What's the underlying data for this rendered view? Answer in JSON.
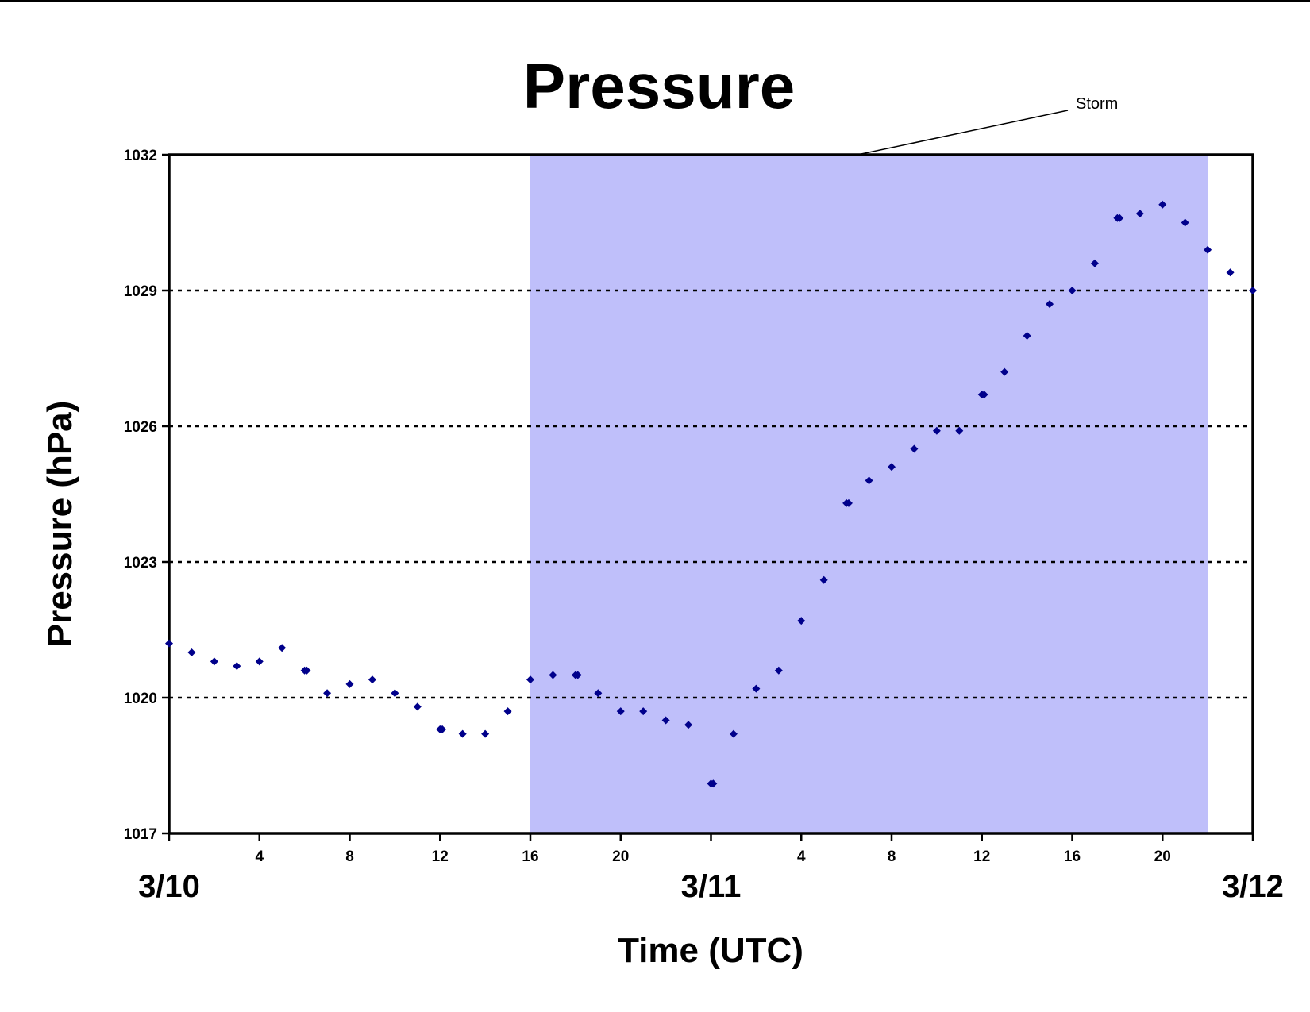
{
  "chart_data": {
    "type": "scatter",
    "title": "Pressure",
    "xlabel": "Time (UTC)",
    "ylabel": "Pressure (hPa)",
    "ylim": [
      1017,
      1032
    ],
    "yticks": [
      1017,
      1020,
      1023,
      1026,
      1029,
      1032
    ],
    "xlim": [
      0,
      48
    ],
    "xticks": [
      {
        "hour": 4,
        "label": "4"
      },
      {
        "hour": 8,
        "label": "8"
      },
      {
        "hour": 12,
        "label": "12"
      },
      {
        "hour": 16,
        "label": "16"
      },
      {
        "hour": 20,
        "label": "20"
      },
      {
        "hour": 28,
        "label": "4"
      },
      {
        "hour": 32,
        "label": "8"
      },
      {
        "hour": 36,
        "label": "12"
      },
      {
        "hour": 40,
        "label": "16"
      },
      {
        "hour": 44,
        "label": "20"
      }
    ],
    "date_labels": [
      {
        "hour": 0,
        "label": "3/10"
      },
      {
        "hour": 24,
        "label": "3/11"
      },
      {
        "hour": 48,
        "label": "3/12"
      }
    ],
    "grid": "horizontal dotted",
    "marker_color": "#00008B",
    "shaded_region": {
      "x_start": 16,
      "x_end": 46,
      "color": "#BFBFFA",
      "label": "Storm"
    },
    "series": [
      {
        "x": [
          0,
          1,
          2,
          3,
          4,
          5,
          6,
          6.1,
          7,
          8,
          9,
          10,
          11,
          12,
          12.1,
          13,
          14,
          15,
          16,
          17,
          18,
          18.1,
          19,
          20,
          21,
          22,
          23,
          24,
          24.1,
          25,
          26,
          27,
          28,
          29,
          30,
          30.1,
          31,
          32,
          33,
          34,
          35,
          36,
          36.1,
          37,
          38,
          39,
          40,
          41,
          42,
          42.1,
          43,
          44,
          45,
          46,
          47,
          48
        ],
        "y": [
          1021.2,
          1021.0,
          1020.8,
          1020.7,
          1020.8,
          1021.1,
          1020.6,
          1020.6,
          1020.1,
          1020.3,
          1020.4,
          1020.1,
          1019.8,
          1019.3,
          1019.3,
          1019.2,
          1019.2,
          1019.7,
          1020.4,
          1020.5,
          1020.5,
          1020.5,
          1020.1,
          1019.7,
          1019.7,
          1019.5,
          1019.4,
          1018.1,
          1018.1,
          1019.2,
          1020.2,
          1020.6,
          1021.7,
          1022.6,
          1024.3,
          1024.3,
          1024.8,
          1025.1,
          1025.5,
          1025.9,
          1025.9,
          1026.7,
          1026.7,
          1027.2,
          1028.0,
          1028.7,
          1029.0,
          1029.6,
          1030.6,
          1030.6,
          1030.7,
          1030.9,
          1030.5,
          1029.9,
          1029.4,
          1029.0
        ]
      }
    ]
  }
}
